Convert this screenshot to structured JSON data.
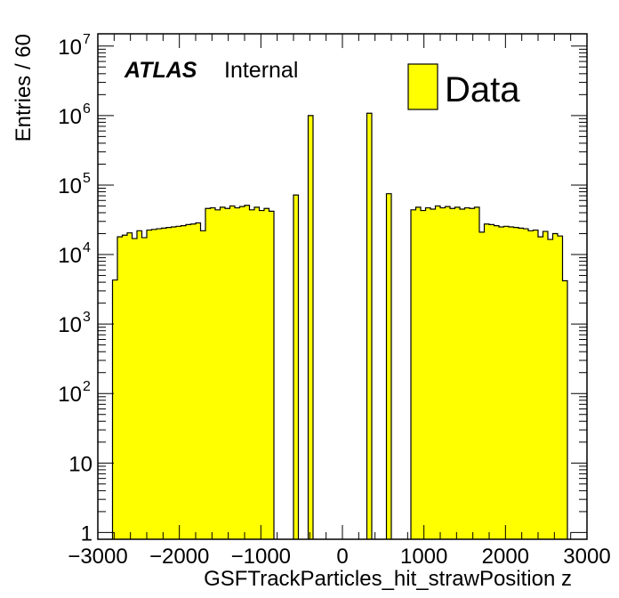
{
  "chart_data": {
    "type": "histogram",
    "yscale": "log",
    "xlabel": "GSFTrackParticles_hit_strawPosition z",
    "ylabel": "Entries / 60",
    "xlim": [
      -3000,
      3000
    ],
    "ylim": [
      0.8,
      15000000
    ],
    "bin_width": 60,
    "x_ticks": [
      {
        "value": -3000,
        "label": "−3000"
      },
      {
        "value": -2000,
        "label": "−2000"
      },
      {
        "value": -1000,
        "label": "−1000"
      },
      {
        "value": 0,
        "label": "0"
      },
      {
        "value": 1000,
        "label": "1000"
      },
      {
        "value": 2000,
        "label": "2000"
      },
      {
        "value": 3000,
        "label": "3000"
      }
    ],
    "y_ticks": [
      {
        "value": 1,
        "base": "1",
        "exp": ""
      },
      {
        "value": 10,
        "base": "10",
        "exp": ""
      },
      {
        "value": 100,
        "base": "10",
        "exp": "2"
      },
      {
        "value": 1000,
        "base": "10",
        "exp": "3"
      },
      {
        "value": 10000,
        "base": "10",
        "exp": "4"
      },
      {
        "value": 100000,
        "base": "10",
        "exp": "5"
      },
      {
        "value": 1000000,
        "base": "10",
        "exp": "6"
      },
      {
        "value": 10000000,
        "base": "10",
        "exp": "7"
      }
    ],
    "series": [
      {
        "name": "Data",
        "color": "#ffff00",
        "edge_color": "#000000",
        "bins": [
          {
            "x0": -2820,
            "x1": -2760,
            "y": 4300
          },
          {
            "x0": -2760,
            "x1": -2700,
            "y": 18000
          },
          {
            "x0": -2700,
            "x1": -2640,
            "y": 19000
          },
          {
            "x0": -2640,
            "x1": -2580,
            "y": 20500
          },
          {
            "x0": -2580,
            "x1": -2520,
            "y": 17000
          },
          {
            "x0": -2520,
            "x1": -2460,
            "y": 22000
          },
          {
            "x0": -2460,
            "x1": -2400,
            "y": 17500
          },
          {
            "x0": -2400,
            "x1": -2340,
            "y": 22500
          },
          {
            "x0": -2340,
            "x1": -2280,
            "y": 23000
          },
          {
            "x0": -2280,
            "x1": -2220,
            "y": 23500
          },
          {
            "x0": -2220,
            "x1": -2160,
            "y": 24000
          },
          {
            "x0": -2160,
            "x1": -2100,
            "y": 24500
          },
          {
            "x0": -2100,
            "x1": -2040,
            "y": 25000
          },
          {
            "x0": -2040,
            "x1": -1980,
            "y": 25500
          },
          {
            "x0": -1980,
            "x1": -1920,
            "y": 26000
          },
          {
            "x0": -1920,
            "x1": -1860,
            "y": 27000
          },
          {
            "x0": -1860,
            "x1": -1800,
            "y": 27500
          },
          {
            "x0": -1800,
            "x1": -1740,
            "y": 28500
          },
          {
            "x0": -1740,
            "x1": -1680,
            "y": 22000
          },
          {
            "x0": -1680,
            "x1": -1620,
            "y": 46000
          },
          {
            "x0": -1620,
            "x1": -1560,
            "y": 47000
          },
          {
            "x0": -1560,
            "x1": -1500,
            "y": 44000
          },
          {
            "x0": -1500,
            "x1": -1440,
            "y": 48000
          },
          {
            "x0": -1440,
            "x1": -1380,
            "y": 46000
          },
          {
            "x0": -1380,
            "x1": -1320,
            "y": 50000
          },
          {
            "x0": -1320,
            "x1": -1260,
            "y": 47000
          },
          {
            "x0": -1260,
            "x1": -1200,
            "y": 49000
          },
          {
            "x0": -1200,
            "x1": -1140,
            "y": 51000
          },
          {
            "x0": -1140,
            "x1": -1080,
            "y": 44000
          },
          {
            "x0": -1080,
            "x1": -1020,
            "y": 48000
          },
          {
            "x0": -1020,
            "x1": -960,
            "y": 43000
          },
          {
            "x0": -960,
            "x1": -900,
            "y": 46000
          },
          {
            "x0": -900,
            "x1": -840,
            "y": 42000
          },
          {
            "x0": -600,
            "x1": -540,
            "y": 72000
          },
          {
            "x0": -420,
            "x1": -360,
            "y": 1000000
          },
          {
            "x0": 300,
            "x1": 360,
            "y": 1080000
          },
          {
            "x0": 540,
            "x1": 600,
            "y": 75000
          },
          {
            "x0": 840,
            "x1": 900,
            "y": 44000
          },
          {
            "x0": 900,
            "x1": 960,
            "y": 48000
          },
          {
            "x0": 960,
            "x1": 1020,
            "y": 43000
          },
          {
            "x0": 1020,
            "x1": 1080,
            "y": 47000
          },
          {
            "x0": 1080,
            "x1": 1140,
            "y": 45000
          },
          {
            "x0": 1140,
            "x1": 1200,
            "y": 50000
          },
          {
            "x0": 1200,
            "x1": 1260,
            "y": 47000
          },
          {
            "x0": 1260,
            "x1": 1320,
            "y": 49000
          },
          {
            "x0": 1320,
            "x1": 1380,
            "y": 46000
          },
          {
            "x0": 1380,
            "x1": 1440,
            "y": 48000
          },
          {
            "x0": 1440,
            "x1": 1500,
            "y": 45000
          },
          {
            "x0": 1500,
            "x1": 1560,
            "y": 47000
          },
          {
            "x0": 1560,
            "x1": 1620,
            "y": 46000
          },
          {
            "x0": 1620,
            "x1": 1680,
            "y": 48000
          },
          {
            "x0": 1680,
            "x1": 1740,
            "y": 21000
          },
          {
            "x0": 1740,
            "x1": 1800,
            "y": 27500
          },
          {
            "x0": 1800,
            "x1": 1860,
            "y": 27000
          },
          {
            "x0": 1860,
            "x1": 1920,
            "y": 26000
          },
          {
            "x0": 1920,
            "x1": 1980,
            "y": 25000
          },
          {
            "x0": 1980,
            "x1": 2040,
            "y": 25500
          },
          {
            "x0": 2040,
            "x1": 2100,
            "y": 25000
          },
          {
            "x0": 2100,
            "x1": 2160,
            "y": 24500
          },
          {
            "x0": 2160,
            "x1": 2220,
            "y": 24000
          },
          {
            "x0": 2220,
            "x1": 2280,
            "y": 23500
          },
          {
            "x0": 2280,
            "x1": 2340,
            "y": 22000
          },
          {
            "x0": 2340,
            "x1": 2400,
            "y": 22500
          },
          {
            "x0": 2400,
            "x1": 2460,
            "y": 18000
          },
          {
            "x0": 2460,
            "x1": 2520,
            "y": 21500
          },
          {
            "x0": 2520,
            "x1": 2580,
            "y": 16500
          },
          {
            "x0": 2580,
            "x1": 2640,
            "y": 20000
          },
          {
            "x0": 2640,
            "x1": 2700,
            "y": 18500
          },
          {
            "x0": 2700,
            "x1": 2760,
            "y": 4200
          }
        ]
      }
    ],
    "legend": {
      "position": "top-right",
      "entries": [
        {
          "label": "Data",
          "color": "#ffff00"
        }
      ]
    },
    "annotation": {
      "experiment": "ATLAS",
      "status": "Internal"
    }
  }
}
